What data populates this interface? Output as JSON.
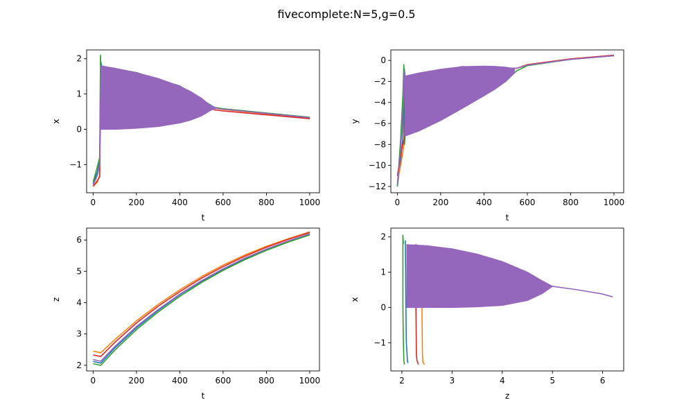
{
  "figure": {
    "suptitle": "fivecomplete:N=5,g=0.5"
  },
  "colors": {
    "series": [
      "#1f77b4",
      "#ff7f0e",
      "#2ca02c",
      "#d62728",
      "#9467bd"
    ]
  },
  "chart_data": [
    {
      "type": "line",
      "title": "",
      "xlabel": "t",
      "ylabel": "x",
      "xlim": [
        -30,
        1045
      ],
      "ylim": [
        -1.8,
        2.25
      ],
      "xticks": [
        0,
        200,
        400,
        600,
        800,
        1000
      ],
      "yticks": [
        -1,
        0,
        1,
        2
      ],
      "grid": false,
      "legend": "none",
      "band": {
        "color_index": 4,
        "t": [
          35,
          100,
          200,
          300,
          400,
          450,
          500,
          540,
          570
        ],
        "upper": [
          1.8,
          1.73,
          1.6,
          1.44,
          1.22,
          1.07,
          0.88,
          0.68,
          0.6
        ],
        "lower": [
          0.0,
          0.0,
          0.03,
          0.08,
          0.18,
          0.26,
          0.38,
          0.53,
          0.6
        ]
      },
      "series": [
        {
          "t": [
            0,
            20,
            30,
            36,
            40,
            200,
            400,
            560,
            600,
            800,
            1000
          ],
          "values": [
            -1.55,
            -1.2,
            -0.9,
            1.9,
            1.78,
            1.6,
            1.22,
            0.62,
            0.58,
            0.46,
            0.34
          ]
        },
        {
          "t": [
            0,
            20,
            30,
            36,
            40,
            200,
            400,
            560,
            600,
            800,
            1000
          ],
          "values": [
            -1.62,
            -1.5,
            -1.3,
            1.6,
            1.76,
            1.6,
            1.22,
            0.6,
            0.56,
            0.44,
            0.32
          ]
        },
        {
          "t": [
            0,
            20,
            30,
            34,
            36,
            40,
            200,
            400,
            560,
            600,
            800,
            1000
          ],
          "values": [
            -1.5,
            -1.05,
            -0.8,
            2.1,
            1.8,
            1.79,
            1.61,
            1.23,
            0.62,
            0.58,
            0.46,
            0.34
          ]
        },
        {
          "t": [
            0,
            20,
            30,
            36,
            40,
            200,
            400,
            560,
            600,
            800,
            1000
          ],
          "values": [
            -1.62,
            -1.45,
            -1.35,
            1.5,
            1.76,
            1.6,
            1.22,
            0.55,
            0.52,
            0.41,
            0.3
          ]
        },
        {
          "t": [
            0,
            20,
            30,
            36,
            40,
            200,
            400,
            560,
            600,
            800,
            1000
          ],
          "values": [
            -1.58,
            -1.3,
            -1.0,
            1.8,
            1.78,
            1.6,
            1.22,
            0.6,
            0.57,
            0.45,
            0.33
          ]
        }
      ]
    },
    {
      "type": "line",
      "title": "",
      "xlabel": "t",
      "ylabel": "y",
      "xlim": [
        -30,
        1045
      ],
      "ylim": [
        -12.6,
        1.0
      ],
      "xticks": [
        0,
        200,
        400,
        600,
        800,
        1000
      ],
      "yticks": [
        -12,
        -10,
        -8,
        -6,
        -4,
        -2,
        0
      ],
      "grid": false,
      "legend": "none",
      "band": {
        "color_index": 4,
        "t": [
          35,
          100,
          200,
          300,
          400,
          450,
          500,
          540
        ],
        "upper": [
          -1.5,
          -1.2,
          -0.85,
          -0.6,
          -0.55,
          -0.57,
          -0.65,
          -0.8
        ],
        "lower": [
          -7.2,
          -6.7,
          -5.7,
          -4.55,
          -3.35,
          -2.75,
          -2.0,
          -1.2
        ]
      },
      "series": [
        {
          "t": [
            0,
            15,
            25,
            32,
            36,
            40,
            300,
            550,
            600,
            800,
            1000
          ],
          "values": [
            -12.0,
            -9.5,
            -7.5,
            -0.8,
            -1.5,
            -1.55,
            -0.6,
            -0.75,
            -0.45,
            0.1,
            0.45
          ]
        },
        {
          "t": [
            0,
            15,
            25,
            32,
            36,
            40,
            300,
            550,
            600,
            800,
            1000
          ],
          "values": [
            -11.5,
            -10.0,
            -8.8,
            -7.8,
            -1.6,
            -1.6,
            -0.6,
            -0.75,
            -0.45,
            0.1,
            0.45
          ]
        },
        {
          "t": [
            0,
            15,
            25,
            30,
            33,
            36,
            40,
            100,
            200,
            300,
            400,
            500,
            550,
            600,
            800,
            1000
          ],
          "values": [
            -12.0,
            -7.5,
            -3.5,
            -0.4,
            -8.0,
            -7.2,
            -7.15,
            -6.7,
            -5.7,
            -4.55,
            -3.35,
            -2.0,
            -1.0,
            -0.5,
            0.1,
            0.45
          ]
        },
        {
          "t": [
            0,
            15,
            25,
            32,
            36,
            40,
            300,
            550,
            600,
            800,
            1000
          ],
          "values": [
            -11.0,
            -9.0,
            -8.0,
            -7.5,
            -1.7,
            -1.65,
            -0.6,
            -0.75,
            -0.4,
            0.15,
            0.5
          ]
        },
        {
          "t": [
            0,
            15,
            25,
            32,
            36,
            40,
            300,
            550,
            600,
            800,
            1000
          ],
          "values": [
            -11.8,
            -8.5,
            -5.0,
            -1.0,
            -1.5,
            -1.55,
            -0.6,
            -0.75,
            -0.45,
            0.1,
            0.45
          ]
        }
      ]
    },
    {
      "type": "line",
      "title": "",
      "xlabel": "t",
      "ylabel": "z",
      "xlim": [
        -30,
        1045
      ],
      "ylim": [
        1.82,
        6.38
      ],
      "xticks": [
        0,
        200,
        400,
        600,
        800,
        1000
      ],
      "yticks": [
        2,
        3,
        4,
        5,
        6
      ],
      "grid": false,
      "legend": "none",
      "series": [
        {
          "t": [
            0,
            35,
            100,
            200,
            300,
            400,
            500,
            600,
            700,
            800,
            900,
            1000
          ],
          "values": [
            2.12,
            2.07,
            2.55,
            3.2,
            3.75,
            4.25,
            4.68,
            5.06,
            5.4,
            5.7,
            5.96,
            6.19
          ]
        },
        {
          "t": [
            0,
            35,
            100,
            200,
            300,
            400,
            500,
            600,
            700,
            800,
            900,
            1000
          ],
          "values": [
            2.45,
            2.4,
            2.82,
            3.42,
            3.94,
            4.41,
            4.83,
            5.2,
            5.52,
            5.8,
            6.04,
            6.26
          ]
        },
        {
          "t": [
            0,
            35,
            100,
            200,
            300,
            400,
            500,
            600,
            700,
            800,
            900,
            1000
          ],
          "values": [
            2.05,
            2.0,
            2.48,
            3.14,
            3.7,
            4.2,
            4.64,
            5.03,
            5.37,
            5.67,
            5.93,
            6.16
          ]
        },
        {
          "t": [
            0,
            35,
            100,
            200,
            300,
            400,
            500,
            600,
            700,
            800,
            900,
            1000
          ],
          "values": [
            2.33,
            2.28,
            2.73,
            3.35,
            3.88,
            4.35,
            4.78,
            5.15,
            5.48,
            5.77,
            6.02,
            6.24
          ]
        },
        {
          "t": [
            0,
            35,
            100,
            200,
            300,
            400,
            500,
            600,
            700,
            800,
            900,
            1000
          ],
          "values": [
            2.18,
            2.13,
            2.6,
            3.24,
            3.78,
            4.27,
            4.7,
            5.08,
            5.42,
            5.71,
            5.97,
            6.2
          ]
        }
      ]
    },
    {
      "type": "line",
      "title": "",
      "xlabel": "z",
      "ylabel": "x",
      "xlim": [
        1.78,
        6.42
      ],
      "ylim": [
        -1.8,
        2.25
      ],
      "xticks": [
        2,
        3,
        4,
        5,
        6
      ],
      "yticks": [
        -1,
        0,
        1,
        2
      ],
      "grid": false,
      "legend": "none",
      "band": {
        "color_index": 4,
        "z": [
          2.1,
          2.5,
          3.0,
          3.5,
          4.0,
          4.5,
          4.8,
          5.0
        ],
        "upper": [
          1.78,
          1.75,
          1.66,
          1.51,
          1.3,
          1.0,
          0.75,
          0.6
        ],
        "lower": [
          0.0,
          0.0,
          0.0,
          0.02,
          0.06,
          0.2,
          0.4,
          0.6
        ]
      },
      "series": [
        {
          "z": [
            2.12,
            2.11,
            2.09,
            2.08,
            2.07
          ],
          "values": [
            -1.58,
            -1.5,
            -1.0,
            0.0,
            1.9
          ]
        },
        {
          "z": [
            2.45,
            2.42,
            2.41,
            2.4,
            2.4
          ],
          "values": [
            -1.62,
            -1.55,
            -1.35,
            0.0,
            1.75
          ]
        },
        {
          "z": [
            2.05,
            2.04,
            2.03,
            2.02,
            2.02,
            2.03
          ],
          "values": [
            -1.62,
            -1.5,
            -1.0,
            0.0,
            2.05,
            1.8
          ]
        },
        {
          "z": [
            2.33,
            2.3,
            2.29,
            2.28,
            2.28
          ],
          "values": [
            -1.62,
            -1.5,
            -1.35,
            0.0,
            1.8
          ]
        },
        {
          "z": [
            5.0,
            5.5,
            6.0,
            6.2
          ],
          "values": [
            0.6,
            0.5,
            0.38,
            0.3
          ]
        }
      ]
    }
  ]
}
